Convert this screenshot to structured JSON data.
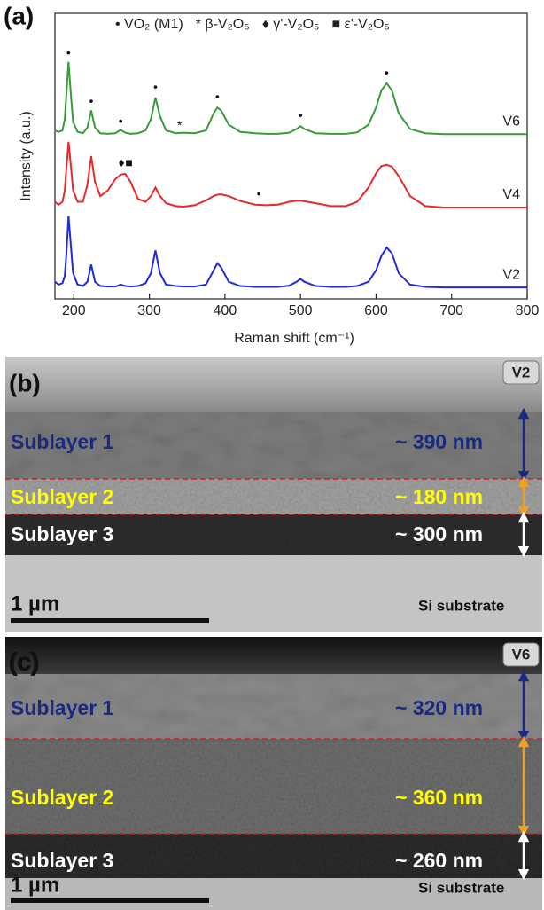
{
  "chart_data": {
    "type": "line",
    "panel_label": "(a)",
    "xlabel": "Raman shift (cm⁻¹)",
    "ylabel": "Intensity (a.u.)",
    "xlim": [
      175,
      800
    ],
    "ylim": [
      0,
      100
    ],
    "xticks": [
      200,
      300,
      400,
      500,
      600,
      700,
      800
    ],
    "legend_items": [
      "• VO₂ (M1)",
      "* β-V₂O₅",
      "♦ γ'-V₂O₅",
      "■ ε'-V₂O₅"
    ],
    "x": [
      175,
      180,
      185,
      188,
      190,
      193,
      196,
      199,
      205,
      212,
      218,
      223,
      228,
      235,
      245,
      255,
      262,
      268,
      275,
      285,
      295,
      302,
      308,
      314,
      322,
      335,
      345,
      360,
      375,
      385,
      390,
      395,
      405,
      420,
      440,
      455,
      470,
      485,
      495,
      500,
      505,
      520,
      540,
      560,
      575,
      590,
      600,
      607,
      614,
      621,
      630,
      645,
      665,
      690,
      720,
      750,
      780,
      800
    ],
    "series": [
      {
        "name": "V6",
        "color": "#3a9a3a",
        "values": [
          59,
          58.5,
          59,
          63,
          71,
          83,
          72,
          62,
          58.5,
          58,
          60,
          66,
          60,
          58,
          57.8,
          58,
          59.2,
          58.2,
          57.8,
          58,
          59,
          63,
          70.5,
          64,
          59,
          58,
          58.2,
          58,
          59,
          65,
          67,
          66,
          61,
          58.5,
          58,
          57.8,
          57.8,
          58.2,
          59.5,
          60.5,
          59.5,
          58,
          57.8,
          57.8,
          58.3,
          61,
          67,
          73,
          75.5,
          73,
          65,
          59.5,
          58,
          57.7,
          57.7,
          57.7,
          57.7,
          57.7
        ]
      },
      {
        "name": "V4",
        "color": "#e8282d",
        "values": [
          34,
          33,
          34,
          38,
          45,
          55,
          47,
          38,
          34,
          34,
          40,
          50,
          41,
          36,
          38,
          42,
          43.5,
          43.8,
          41,
          35,
          34,
          36,
          39,
          36,
          33.5,
          32.5,
          32.3,
          32.8,
          34.5,
          36,
          36.5,
          36.6,
          36,
          34.3,
          33,
          32.8,
          33,
          34,
          34.4,
          34.4,
          34.2,
          33.5,
          32.5,
          32.5,
          34,
          39,
          44,
          46.5,
          47,
          46.3,
          43,
          36,
          32.5,
          32,
          32,
          32,
          32,
          32
        ]
      },
      {
        "name": "V2",
        "color": "#1f2bd8",
        "values": [
          6,
          5,
          5.5,
          8,
          15,
          29,
          19,
          9,
          5,
          4.5,
          6,
          12,
          6,
          4.5,
          4.3,
          4.3,
          5,
          4.5,
          4.3,
          4.5,
          5.5,
          9,
          17,
          9,
          5,
          4.5,
          4.3,
          4.3,
          5,
          10,
          12.5,
          11,
          6,
          4.5,
          4.2,
          4.2,
          4.2,
          4.6,
          6,
          7,
          6,
          4.5,
          4.2,
          4.2,
          4.5,
          6,
          10,
          15,
          18,
          16,
          9,
          5,
          4.2,
          4,
          4,
          4,
          4,
          4
        ]
      }
    ],
    "annotations": [
      {
        "text": "•",
        "x": 193,
        "y": 86
      },
      {
        "text": "•",
        "x": 223,
        "y": 69
      },
      {
        "text": "•",
        "x": 262,
        "y": 62
      },
      {
        "text": "•",
        "x": 308,
        "y": 74
      },
      {
        "text": "•",
        "x": 390,
        "y": 70.5
      },
      {
        "text": "•",
        "x": 500,
        "y": 64
      },
      {
        "text": "•",
        "x": 614,
        "y": 79
      },
      {
        "text": "*",
        "x": 340,
        "y": 60.5
      },
      {
        "text": "♦",
        "x": 263,
        "y": 47.5
      },
      {
        "text": "■",
        "x": 273,
        "y": 47.5
      },
      {
        "text": "•",
        "x": 445,
        "y": 36.5
      }
    ]
  },
  "panels": [
    {
      "label": "(b)",
      "sample": "V2",
      "layers": [
        {
          "name": "Sublayer 1",
          "thickness": "~ 390 nm"
        },
        {
          "name": "Sublayer 2",
          "thickness": "~ 180 nm"
        },
        {
          "name": "Sublayer 3",
          "thickness": "~ 300 nm"
        }
      ],
      "scale_bar": "1 µm",
      "substrate": "Si substrate"
    },
    {
      "label": "(c)",
      "sample": "V6",
      "layers": [
        {
          "name": "Sublayer 1",
          "thickness": "~ 320 nm"
        },
        {
          "name": "Sublayer 2",
          "thickness": "~ 360 nm"
        },
        {
          "name": "Sublayer 3",
          "thickness": "~ 260 nm"
        }
      ],
      "scale_bar": "1 µm",
      "substrate": "Si substrate"
    }
  ]
}
